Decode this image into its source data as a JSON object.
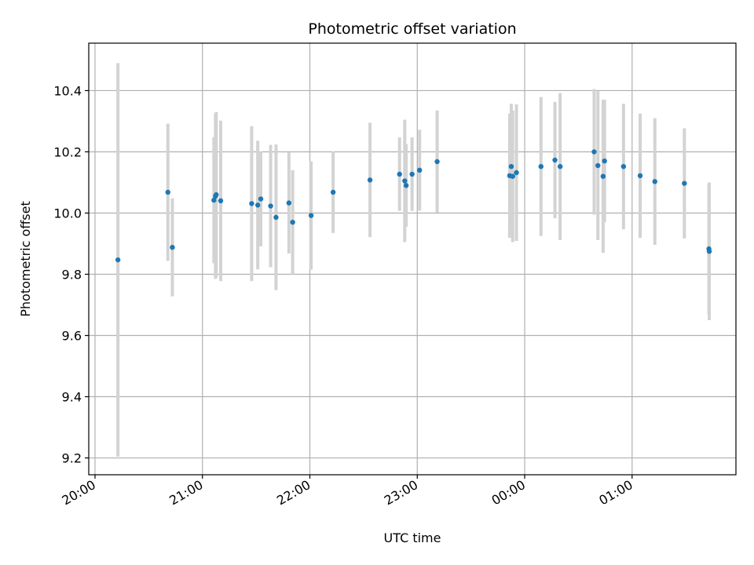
{
  "chart_data": {
    "type": "scatter",
    "title": "Photometric offset variation",
    "xlabel": "UTC time",
    "ylabel": "Photometric offset",
    "x_unit": "minutes since 20:00 UTC",
    "xlim": [
      -3.5,
      358
    ],
    "ylim": [
      9.145,
      10.555
    ],
    "x_ticks": [
      {
        "value": 0,
        "label": "20:00"
      },
      {
        "value": 60,
        "label": "21:00"
      },
      {
        "value": 120,
        "label": "22:00"
      },
      {
        "value": 180,
        "label": "23:00"
      },
      {
        "value": 240,
        "label": "00:00"
      },
      {
        "value": 300,
        "label": "01:00"
      }
    ],
    "y_ticks": [
      {
        "value": 9.2,
        "label": "9.2"
      },
      {
        "value": 9.4,
        "label": "9.4"
      },
      {
        "value": 9.6,
        "label": "9.6"
      },
      {
        "value": 9.8,
        "label": "9.8"
      },
      {
        "value": 10.0,
        "label": "10.0"
      },
      {
        "value": 10.2,
        "label": "10.2"
      },
      {
        "value": 10.4,
        "label": "10.4"
      }
    ],
    "grid": true,
    "colors": {
      "point": "#1f77b4",
      "errorbar": "#d3d3d3",
      "grid": "#b0b0b0"
    },
    "points": [
      {
        "x": 12.8,
        "y": 9.847,
        "err": 0.643
      },
      {
        "x": 40.7,
        "y": 10.068,
        "err": 0.224
      },
      {
        "x": 43.2,
        "y": 9.888,
        "err": 0.16
      },
      {
        "x": 66.4,
        "y": 10.042,
        "err": 0.206
      },
      {
        "x": 67.3,
        "y": 10.055,
        "err": 0.27
      },
      {
        "x": 67.7,
        "y": 10.06,
        "err": 0.27
      },
      {
        "x": 70.2,
        "y": 10.04,
        "err": 0.262
      },
      {
        "x": 87.5,
        "y": 10.031,
        "err": 0.253
      },
      {
        "x": 90.9,
        "y": 10.026,
        "err": 0.21
      },
      {
        "x": 92.6,
        "y": 10.046,
        "err": 0.155
      },
      {
        "x": 98.1,
        "y": 10.023,
        "err": 0.2
      },
      {
        "x": 101.1,
        "y": 9.986,
        "err": 0.238
      },
      {
        "x": 108.3,
        "y": 10.033,
        "err": 0.165
      },
      {
        "x": 110.4,
        "y": 9.97,
        "err": 0.17
      },
      {
        "x": 120.7,
        "y": 9.992,
        "err": 0.177
      },
      {
        "x": 133.0,
        "y": 10.068,
        "err": 0.133
      },
      {
        "x": 153.6,
        "y": 10.108,
        "err": 0.187
      },
      {
        "x": 170.1,
        "y": 10.127,
        "err": 0.12
      },
      {
        "x": 173.0,
        "y": 10.105,
        "err": 0.2
      },
      {
        "x": 173.8,
        "y": 10.09,
        "err": 0.135
      },
      {
        "x": 177.1,
        "y": 10.127,
        "err": 0.12
      },
      {
        "x": 181.3,
        "y": 10.14,
        "err": 0.132
      },
      {
        "x": 191.1,
        "y": 10.168,
        "err": 0.167
      },
      {
        "x": 231.6,
        "y": 10.122,
        "err": 0.203
      },
      {
        "x": 232.5,
        "y": 10.152,
        "err": 0.205
      },
      {
        "x": 233.3,
        "y": 10.12,
        "err": 0.215
      },
      {
        "x": 235.4,
        "y": 10.132,
        "err": 0.223
      },
      {
        "x": 249.1,
        "y": 10.152,
        "err": 0.227
      },
      {
        "x": 256.9,
        "y": 10.173,
        "err": 0.19
      },
      {
        "x": 259.8,
        "y": 10.152,
        "err": 0.24
      },
      {
        "x": 278.8,
        "y": 10.2,
        "err": 0.205
      },
      {
        "x": 280.9,
        "y": 10.155,
        "err": 0.243
      },
      {
        "x": 283.8,
        "y": 10.12,
        "err": 0.25
      },
      {
        "x": 284.6,
        "y": 10.17,
        "err": 0.2
      },
      {
        "x": 295.2,
        "y": 10.152,
        "err": 0.205
      },
      {
        "x": 304.5,
        "y": 10.122,
        "err": 0.203
      },
      {
        "x": 312.7,
        "y": 10.103,
        "err": 0.207
      },
      {
        "x": 329.2,
        "y": 10.097,
        "err": 0.18
      },
      {
        "x": 342.9,
        "y": 9.883,
        "err": 0.212
      },
      {
        "x": 343.1,
        "y": 9.875,
        "err": 0.225
      }
    ]
  }
}
